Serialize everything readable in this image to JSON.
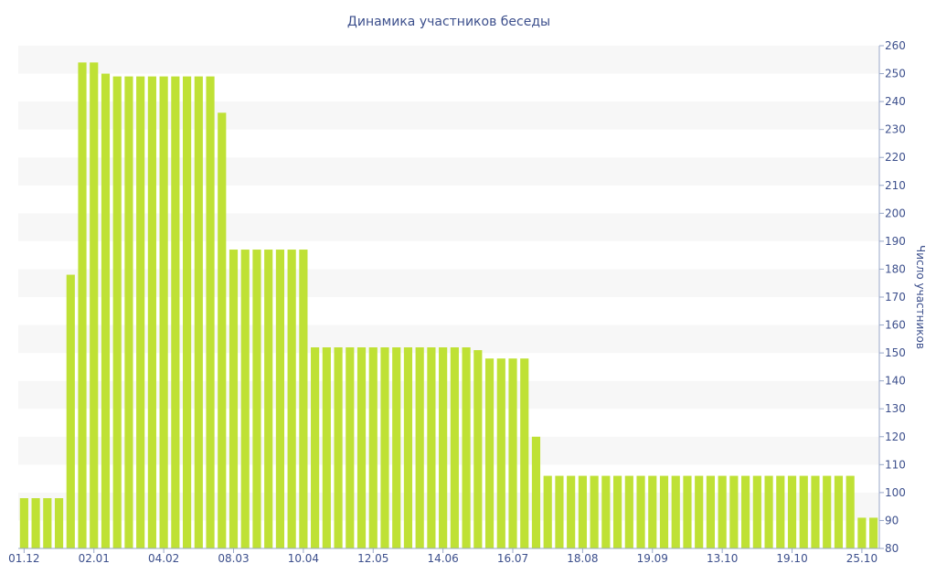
{
  "colors": {
    "bar": "#bfe135",
    "band_light": "#f7f7f7",
    "band_white": "#ffffff",
    "text": "#3c4f8c",
    "axis": "#98a7c8"
  },
  "chart_data": {
    "type": "bar",
    "title": "Динамика участников беседы",
    "ylabel": "Число участников",
    "xlabel": "",
    "ylim": [
      80,
      260
    ],
    "y_ticks": [
      80,
      90,
      100,
      110,
      120,
      130,
      140,
      150,
      160,
      170,
      180,
      190,
      200,
      210,
      220,
      230,
      240,
      250,
      260
    ],
    "y_axis_position": "right",
    "grid": "alternating horizontal bands",
    "x_tick_labels": [
      "01.12",
      "02.01",
      "04.02",
      "08.03",
      "10.04",
      "12.05",
      "14.06",
      "16.07",
      "18.08",
      "19.09",
      "13.10",
      "19.10",
      "25.10"
    ],
    "x_tick_label_positions": [
      0,
      6,
      12,
      18,
      24,
      30,
      36,
      42,
      48,
      54,
      60,
      66,
      72
    ],
    "values": [
      98,
      98,
      98,
      98,
      178,
      254,
      254,
      250,
      249,
      249,
      249,
      249,
      249,
      249,
      249,
      249,
      249,
      236,
      187,
      187,
      187,
      187,
      187,
      187,
      187,
      152,
      152,
      152,
      152,
      152,
      152,
      152,
      152,
      152,
      152,
      152,
      152,
      152,
      152,
      151,
      148,
      148,
      148,
      148,
      120,
      106,
      106,
      106,
      106,
      106,
      106,
      106,
      106,
      106,
      106,
      106,
      106,
      106,
      106,
      106,
      106,
      106,
      106,
      106,
      106,
      106,
      106,
      106,
      106,
      106,
      106,
      106,
      91,
      91
    ]
  }
}
